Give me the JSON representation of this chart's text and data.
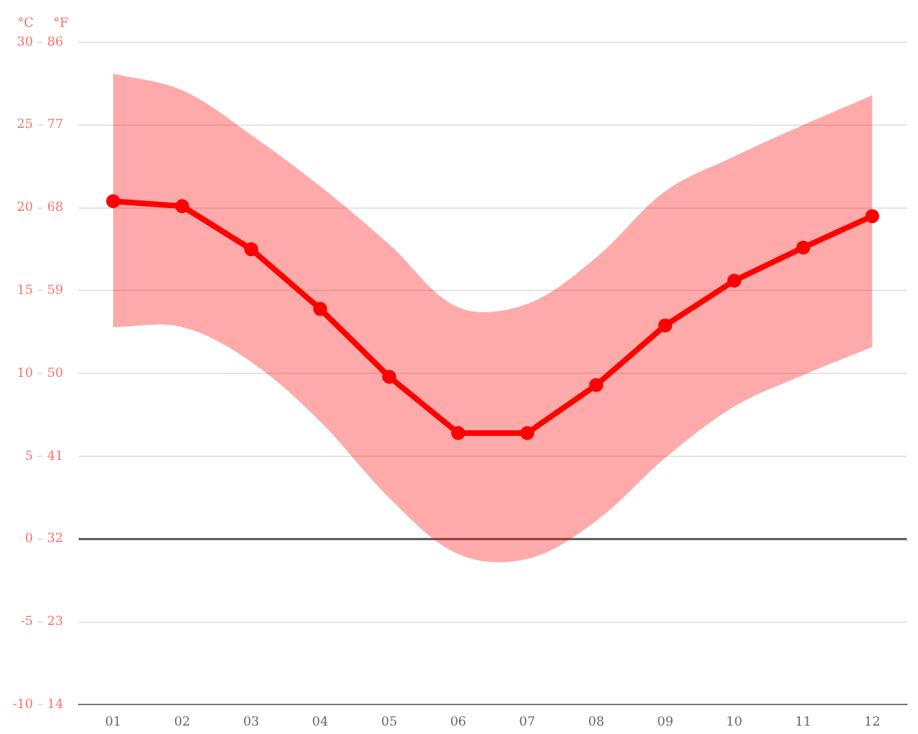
{
  "chart_data": {
    "type": "line",
    "ylabel": "°C",
    "y2label": "°F",
    "categories": [
      "01",
      "02",
      "03",
      "04",
      "05",
      "06",
      "07",
      "08",
      "09",
      "10",
      "11",
      "12"
    ],
    "series": [
      {
        "color": "#ff0000",
        "values": [
          20.4,
          20.1,
          17.5,
          13.9,
          9.8,
          6.4,
          6.4,
          9.3,
          12.9,
          15.6,
          17.6,
          19.5
        ],
        "lower": [
          12.8,
          12.8,
          10.7,
          7.1,
          2.5,
          -0.9,
          -1.2,
          1.1,
          4.9,
          8.0,
          9.9,
          11.6
        ],
        "upper": [
          28.1,
          27.1,
          24.4,
          21.3,
          17.8,
          14.0,
          14.2,
          17.0,
          21.0,
          23.1,
          25.0,
          26.8
        ]
      }
    ],
    "ylim": [
      -10,
      30
    ],
    "yticks": [
      -10,
      -5,
      0,
      5,
      10,
      15,
      20,
      25,
      30
    ],
    "y2lim": [
      14,
      86
    ],
    "y2ticks": [
      14,
      23,
      32,
      41,
      50,
      59,
      68,
      77,
      86
    ],
    "ref_lines": [
      {
        "axis": "y",
        "value": 0,
        "color": "#555555"
      }
    ],
    "grid": "y",
    "legend": false,
    "marker": "circle",
    "line_style": "solid"
  }
}
